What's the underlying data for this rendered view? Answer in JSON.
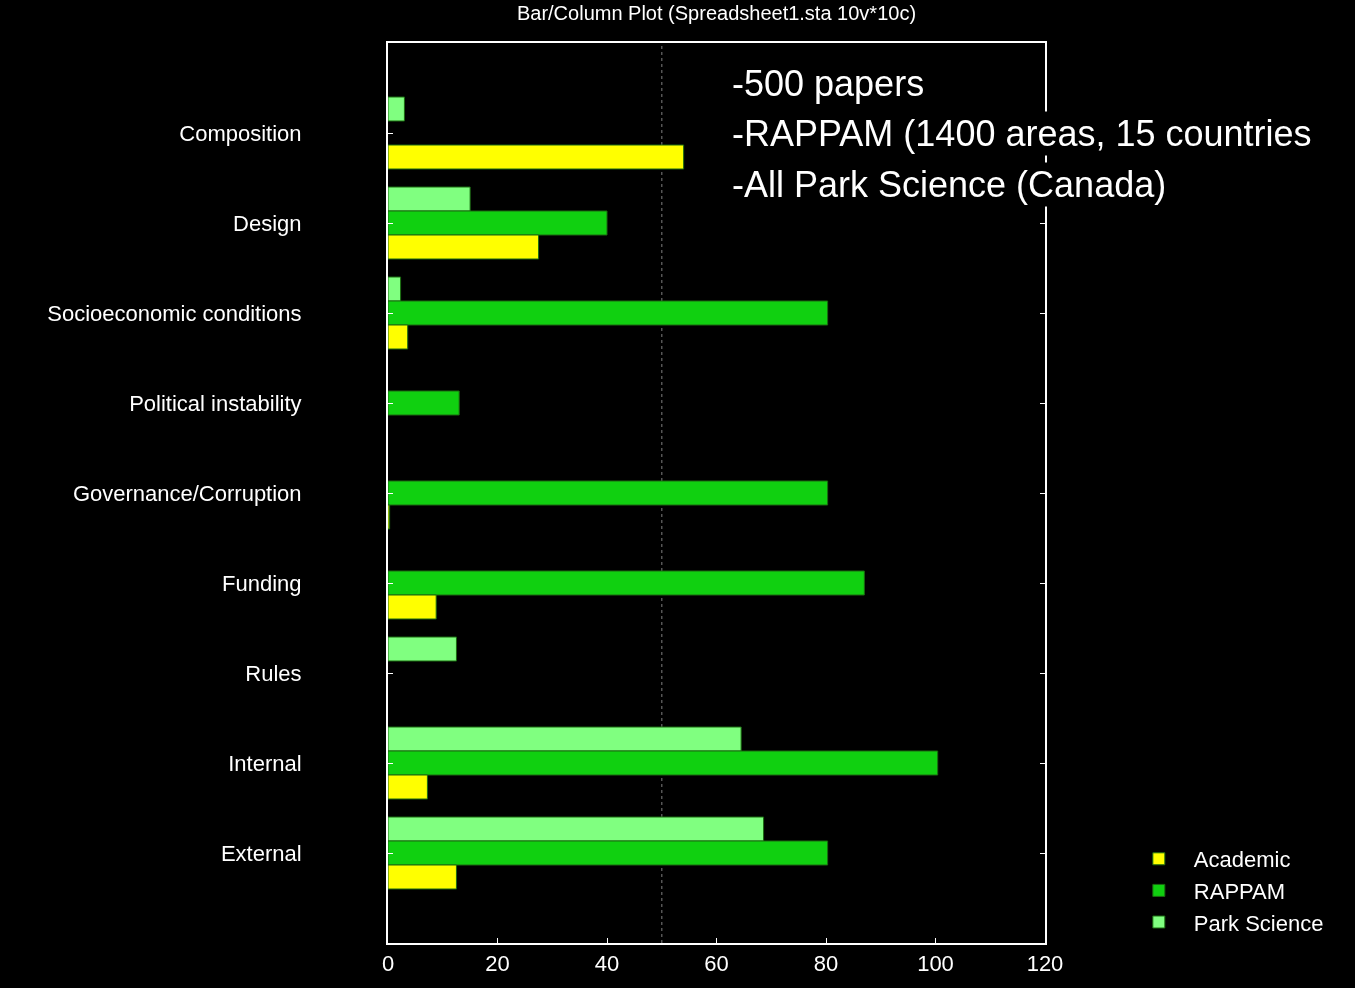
{
  "chart_data": {
    "type": "bar",
    "orientation": "horizontal",
    "title": "Bar/Column Plot (Spreadsheet1.sta 10v*10c)",
    "categories": [
      "Composition",
      "Design",
      "Socioeconomic conditions",
      "Political instability",
      "Governance/Corruption",
      "Funding",
      "Rules",
      "Internal",
      "External"
    ],
    "series": [
      {
        "name": "Academic",
        "color": "#ffff00",
        "values": [
          54,
          27.5,
          3.6,
          null,
          0.3,
          8.8,
          null,
          7.2,
          12.5
        ]
      },
      {
        "name": "RAPPAM",
        "color": "#10d010",
        "values": [
          null,
          40,
          80.3,
          13,
          80.3,
          87,
          null,
          100.4,
          80.3
        ]
      },
      {
        "name": "Park Science",
        "color": "#80ff80",
        "values": [
          3,
          15,
          2.3,
          null,
          null,
          null,
          12.5,
          64.5,
          68.6
        ]
      }
    ],
    "xlim": [
      0,
      120
    ],
    "xticks": [
      0,
      20,
      40,
      60,
      80,
      100,
      120
    ],
    "ref_lines": [
      {
        "axis": "x",
        "value": 50,
        "color": "#555555",
        "line_style": "dotted"
      }
    ],
    "annotations": [
      "-500 papers",
      "-RAPPAM (1400 areas, 15 countries",
      "-All Park Science (Canada)"
    ],
    "legend": "bottom right",
    "grid": false
  }
}
